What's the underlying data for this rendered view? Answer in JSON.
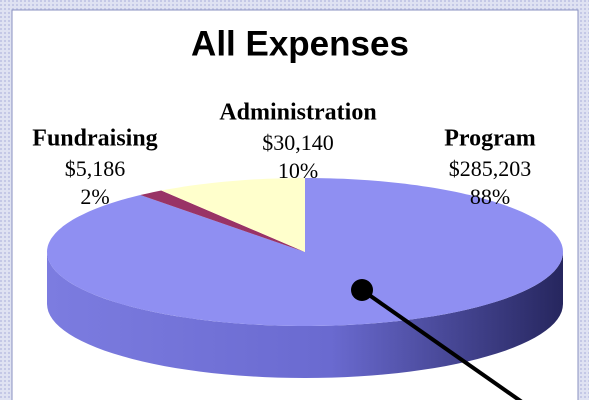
{
  "chart_data": {
    "type": "pie",
    "title": "All Expenses",
    "categories": [
      "Program",
      "Fundraising",
      "Administration"
    ],
    "values": [
      285203,
      5186,
      30140
    ],
    "value_labels": [
      "$285,203",
      "$5,186",
      "$30,140"
    ],
    "percent_labels": [
      "88%",
      "2%",
      "10%"
    ],
    "colors": [
      "#8f8ff2",
      "#993366",
      "#ffffcc"
    ]
  }
}
